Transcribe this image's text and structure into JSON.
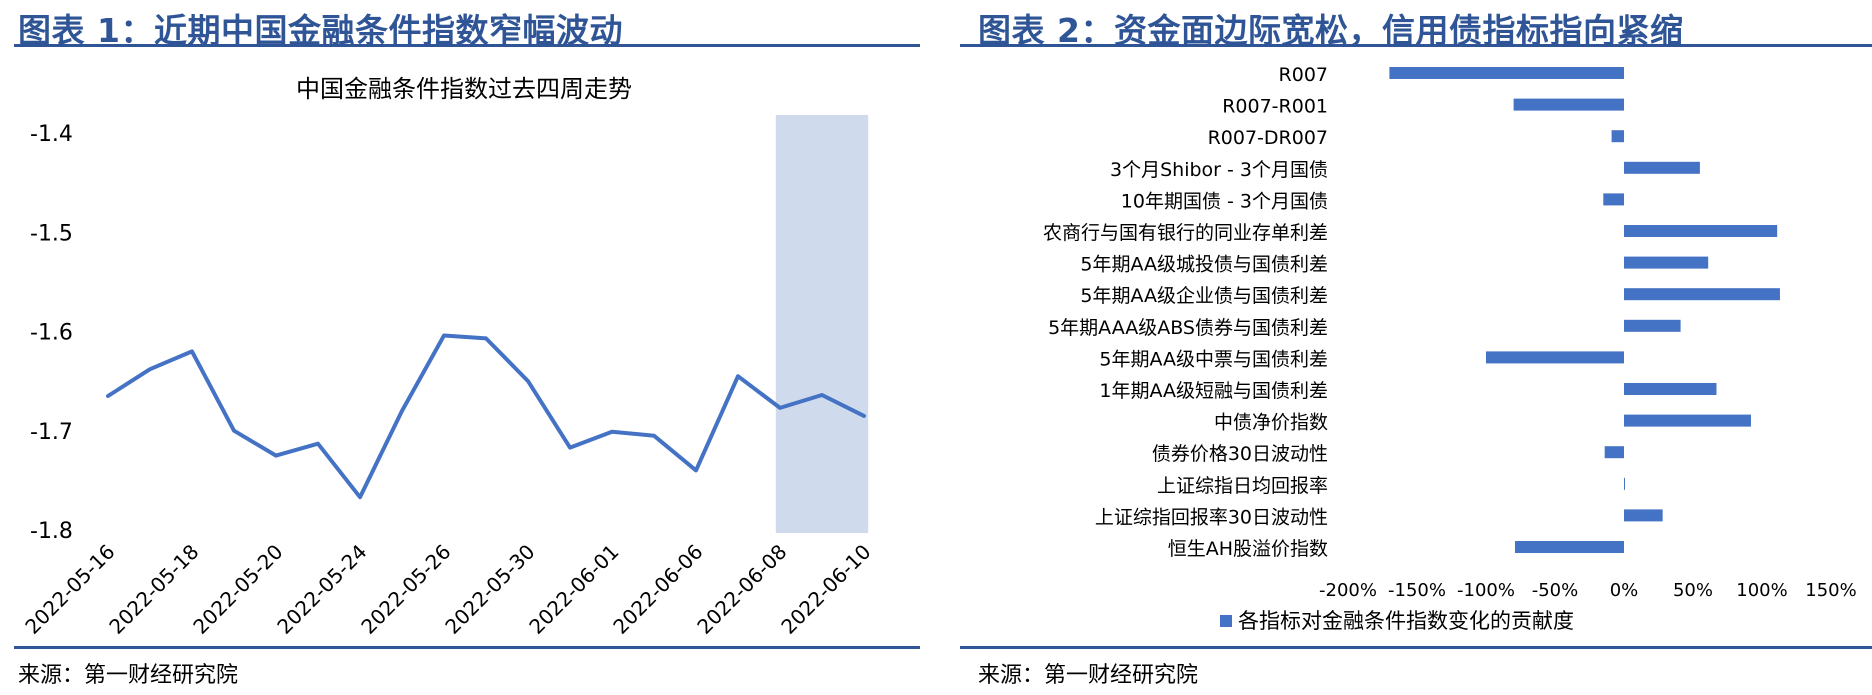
{
  "left": {
    "figure_title": "图表 1：近期中国金融条件指数窄幅波动",
    "source": "来源：第一财经研究院",
    "colors": {
      "line": "#4472C4",
      "highlight": "#CFDAEC",
      "rule": "#2F5597"
    }
  },
  "right": {
    "figure_title": "图表 2：资金面边际宽松，信用债指标指向紧缩",
    "source": "来源：第一财经研究院",
    "colors": {
      "bar": "#4472C4",
      "rule": "#2F5597"
    }
  },
  "chart_data": [
    {
      "type": "line",
      "title": "中国金融条件指数过去四周走势",
      "xlabel": "",
      "ylabel": "",
      "ylim": [
        -1.8,
        -1.4
      ],
      "yticks": [
        "-1.4",
        "-1.5",
        "-1.6",
        "-1.7",
        "-1.8"
      ],
      "ytick_values": [
        -1.4,
        -1.5,
        -1.6,
        -1.7,
        -1.8
      ],
      "x_tick_labels": [
        "2022-05-16",
        "2022-05-18",
        "2022-05-20",
        "2022-05-24",
        "2022-05-26",
        "2022-05-30",
        "2022-06-01",
        "2022-06-06",
        "2022-06-08",
        "2022-06-10"
      ],
      "highlight_range": [
        "2022-06-08",
        "2022-06-10"
      ],
      "grid": false,
      "series": [
        {
          "points": [
            {
              "x": "2022-05-16",
              "y": -1.665
            },
            {
              "x": "2022-05-17",
              "y": -1.638
            },
            {
              "x": "2022-05-18",
              "y": -1.62
            },
            {
              "x": "2022-05-19",
              "y": -1.7
            },
            {
              "x": "2022-05-20",
              "y": -1.725
            },
            {
              "x": "2022-05-23",
              "y": -1.713
            },
            {
              "x": "2022-05-24",
              "y": -1.767
            },
            {
              "x": "2022-05-25",
              "y": -1.68
            },
            {
              "x": "2022-05-26",
              "y": -1.604
            },
            {
              "x": "2022-05-27",
              "y": -1.607
            },
            {
              "x": "2022-05-30",
              "y": -1.65
            },
            {
              "x": "2022-05-31",
              "y": -1.717
            },
            {
              "x": "2022-06-01",
              "y": -1.701
            },
            {
              "x": "2022-06-02",
              "y": -1.705
            },
            {
              "x": "2022-06-06",
              "y": -1.74
            },
            {
              "x": "2022-06-07",
              "y": -1.645
            },
            {
              "x": "2022-06-08",
              "y": -1.677
            },
            {
              "x": "2022-06-09",
              "y": -1.664
            },
            {
              "x": "2022-06-10",
              "y": -1.685
            }
          ]
        }
      ]
    },
    {
      "type": "bar",
      "orientation": "horizontal",
      "title": "",
      "categories": [
        "R007",
        "R007-R001",
        "R007-DR007",
        "3个月Shibor - 3个月国债",
        "10年期国债 - 3个月国债",
        "农商行与国有银行的同业存单利差",
        "5年期AA级城投债与国债利差",
        "5年期AA级企业债与国债利差",
        "5年期AAA级ABS债券与国债利差",
        "5年期AA级中票与国债利差",
        "1年期AA级短融与国债利差",
        "中债净价指数",
        "债券价格30日波动性",
        "上证综指日均回报率",
        "上证综指回报率30日波动性",
        "恒生AH股溢价指数"
      ],
      "series": [
        {
          "name": "各指标对金融条件指数变化的贡献度",
          "values": [
            -1.7,
            -0.8,
            -0.09,
            0.55,
            -0.15,
            1.11,
            0.61,
            1.13,
            0.41,
            -1.0,
            0.67,
            0.92,
            -0.14,
            0.005,
            0.28,
            -0.79
          ]
        }
      ],
      "xlim": [
        -2.0,
        1.5
      ],
      "x_tick_labels": [
        "-200%",
        "-150%",
        "-100%",
        "-50%",
        "0%",
        "50%",
        "100%",
        "150%"
      ],
      "x_tick_values": [
        -2.0,
        -1.5,
        -1.0,
        -0.5,
        0,
        0.5,
        1.0,
        1.5
      ],
      "grid": false,
      "legend_position": "bottom"
    }
  ]
}
